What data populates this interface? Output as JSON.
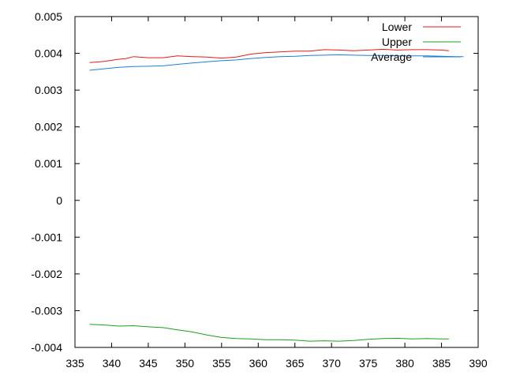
{
  "chart_data": {
    "type": "line",
    "title": "",
    "xlabel": "",
    "ylabel": "",
    "xlim": [
      335,
      390
    ],
    "ylim": [
      -0.004,
      0.005
    ],
    "x_ticks": [
      335,
      340,
      345,
      350,
      355,
      360,
      365,
      370,
      375,
      380,
      385,
      390
    ],
    "y_ticks": [
      -0.004,
      -0.003,
      -0.002,
      -0.001,
      0,
      0.001,
      0.002,
      0.003,
      0.004,
      0.005
    ],
    "x_tick_labels": [
      "335",
      "340",
      "345",
      "350",
      "355",
      "360",
      "365",
      "370",
      "375",
      "380",
      "385",
      "390"
    ],
    "y_tick_labels": [
      "-0.004",
      "-0.003",
      "-0.002",
      "-0.001",
      "0",
      "0.001",
      "0.002",
      "0.003",
      "0.004",
      "0.005"
    ],
    "grid": false,
    "legend_position": "top-right",
    "series": [
      {
        "name": "Lower",
        "color": "#e41a1c",
        "points": [
          [
            337,
            0.00375
          ],
          [
            339,
            0.00378
          ],
          [
            341,
            0.00384
          ],
          [
            342,
            0.00386
          ],
          [
            343,
            0.00391
          ],
          [
            345,
            0.00388
          ],
          [
            347,
            0.00388
          ],
          [
            349,
            0.00393
          ],
          [
            351,
            0.00391
          ],
          [
            353,
            0.0039
          ],
          [
            355,
            0.00387
          ],
          [
            357,
            0.0039
          ],
          [
            359,
            0.00398
          ],
          [
            361,
            0.00402
          ],
          [
            363,
            0.00404
          ],
          [
            365,
            0.00406
          ],
          [
            367,
            0.00406
          ],
          [
            369,
            0.0041
          ],
          [
            371,
            0.00409
          ],
          [
            373,
            0.00407
          ],
          [
            375,
            0.00409
          ],
          [
            377,
            0.00411
          ],
          [
            379,
            0.00409
          ],
          [
            381,
            0.0041
          ],
          [
            383,
            0.0041
          ],
          [
            385,
            0.00409
          ],
          [
            386,
            0.00407
          ]
        ]
      },
      {
        "name": "Upper",
        "color": "#1ba01b",
        "points": [
          [
            337,
            -0.00337
          ],
          [
            339,
            -0.00339
          ],
          [
            341,
            -0.00342
          ],
          [
            343,
            -0.00341
          ],
          [
            345,
            -0.00344
          ],
          [
            347,
            -0.00346
          ],
          [
            349,
            -0.00352
          ],
          [
            351,
            -0.00358
          ],
          [
            353,
            -0.00366
          ],
          [
            355,
            -0.00373
          ],
          [
            357,
            -0.00376
          ],
          [
            359,
            -0.00377
          ],
          [
            361,
            -0.00379
          ],
          [
            363,
            -0.00379
          ],
          [
            365,
            -0.0038
          ],
          [
            367,
            -0.00383
          ],
          [
            369,
            -0.00382
          ],
          [
            371,
            -0.00383
          ],
          [
            373,
            -0.00381
          ],
          [
            375,
            -0.00378
          ],
          [
            377,
            -0.00376
          ],
          [
            379,
            -0.00375
          ],
          [
            381,
            -0.00377
          ],
          [
            383,
            -0.00376
          ],
          [
            385,
            -0.00377
          ],
          [
            386,
            -0.00377
          ]
        ]
      },
      {
        "name": "Average",
        "color": "#1b7fd6",
        "points": [
          [
            337,
            0.00354
          ],
          [
            339,
            0.00358
          ],
          [
            341,
            0.00362
          ],
          [
            343,
            0.00364
          ],
          [
            345,
            0.00365
          ],
          [
            347,
            0.00366
          ],
          [
            349,
            0.0037
          ],
          [
            351,
            0.00374
          ],
          [
            353,
            0.00377
          ],
          [
            355,
            0.0038
          ],
          [
            357,
            0.00382
          ],
          [
            359,
            0.00386
          ],
          [
            361,
            0.00389
          ],
          [
            363,
            0.00391
          ],
          [
            365,
            0.00392
          ],
          [
            367,
            0.00394
          ],
          [
            369,
            0.00395
          ],
          [
            371,
            0.00396
          ],
          [
            373,
            0.00395
          ],
          [
            375,
            0.00394
          ],
          [
            377,
            0.00394
          ],
          [
            379,
            0.00393
          ],
          [
            381,
            0.00393
          ],
          [
            383,
            0.00393
          ],
          [
            385,
            0.00392
          ],
          [
            387,
            0.00391
          ],
          [
            388,
            0.00391
          ]
        ]
      }
    ]
  }
}
